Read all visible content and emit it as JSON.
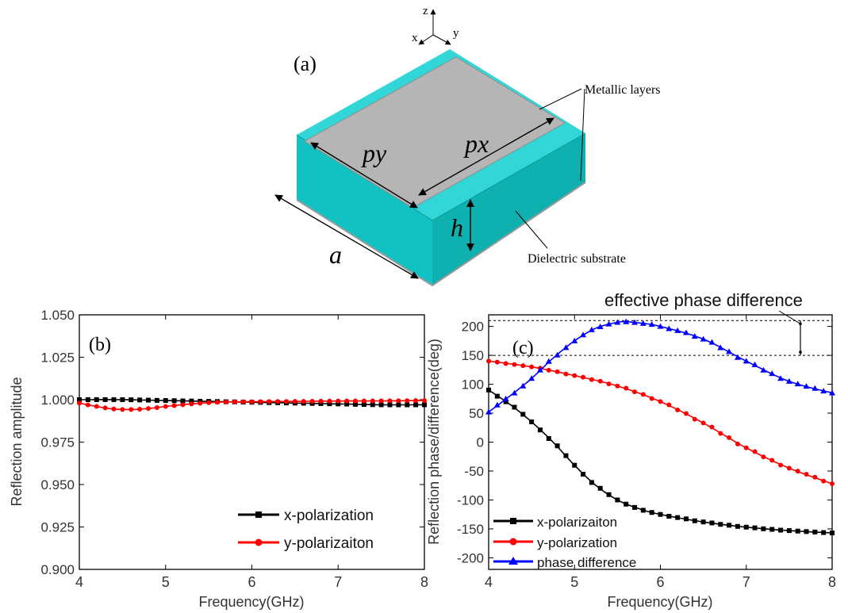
{
  "schematic": {
    "panel_label": "(a)",
    "axes": {
      "z": "z",
      "x": "x",
      "y": "y"
    },
    "dims": {
      "py": "py",
      "px": "px",
      "h": "h",
      "a": "a"
    },
    "callouts": {
      "metal": "Metallic layers",
      "substrate": "Dielectric substrate"
    },
    "colors": {
      "substrate_top": "#33d6d6",
      "substrate_front": "#12c2c2",
      "substrate_side": "#0fb0b0",
      "metal": "#b5b5b5"
    }
  },
  "chart_data": [
    {
      "type": "line",
      "panel_label": "(b)",
      "title": "",
      "xlabel": "Frequency(GHz)",
      "ylabel": "Reflection amplitude",
      "xlim": [
        4,
        8
      ],
      "ylim": [
        0.9,
        1.05
      ],
      "xticks": [
        "4",
        "5",
        "6",
        "7",
        "8"
      ],
      "yticks": [
        "0.900",
        "0.925",
        "0.950",
        "0.975",
        "1.000",
        "1.025",
        "1.050"
      ],
      "legend_position": "bottom-right",
      "series": [
        {
          "name": "x-polarization",
          "color": "#000000",
          "marker": "square",
          "x": [
            4.0,
            4.5,
            5.0,
            5.5,
            6.0,
            6.5,
            7.0,
            7.5,
            8.0
          ],
          "y": [
            1.0,
            1.0,
            0.9995,
            0.999,
            0.9985,
            0.998,
            0.9975,
            0.997,
            0.997
          ]
        },
        {
          "name": "y-polarizaiton",
          "color": "#ff0000",
          "marker": "circle",
          "x": [
            4.0,
            4.2,
            4.4,
            4.6,
            4.8,
            5.0,
            5.3,
            5.6,
            6.0,
            6.5,
            7.0,
            7.5,
            8.0
          ],
          "y": [
            0.998,
            0.996,
            0.9945,
            0.9942,
            0.9948,
            0.996,
            0.9975,
            0.9985,
            0.9988,
            0.999,
            0.9992,
            0.9993,
            0.9995
          ]
        }
      ]
    },
    {
      "type": "line",
      "panel_label": "(c)",
      "title": "",
      "xlabel": "Frequency(GHz)",
      "ylabel": "Reflection phase/difference(deg)",
      "xlim": [
        4,
        8
      ],
      "ylim": [
        -220,
        220
      ],
      "xticks": [
        "4",
        "5",
        "6",
        "7",
        "8"
      ],
      "yticks": [
        "-200",
        "-150",
        "-100",
        "-50",
        "0",
        "50",
        "100",
        "150",
        "200"
      ],
      "legend_position": "bottom-left",
      "annotation": {
        "text": "effective phase difference",
        "y_upper": 210,
        "y_lower": 150
      },
      "series": [
        {
          "name": "x-polarizaiton",
          "color": "#000000",
          "marker": "square",
          "x": [
            4.0,
            4.25,
            4.5,
            4.75,
            5.0,
            5.25,
            5.5,
            5.75,
            6.0,
            6.5,
            7.0,
            7.5,
            8.0
          ],
          "y": [
            90,
            65,
            35,
            0,
            -40,
            -75,
            -100,
            -115,
            -125,
            -138,
            -147,
            -153,
            -157
          ]
        },
        {
          "name": "y-polarization",
          "color": "#ff0000",
          "marker": "circle",
          "x": [
            4.0,
            4.5,
            5.0,
            5.5,
            6.0,
            6.5,
            7.0,
            7.5,
            8.0
          ],
          "y": [
            140,
            130,
            115,
            97,
            70,
            33,
            -10,
            -45,
            -72
          ]
        },
        {
          "name": "phase difference",
          "color": "#0000ff",
          "marker": "triangle",
          "x": [
            4.0,
            4.25,
            4.5,
            4.75,
            5.0,
            5.25,
            5.5,
            5.6,
            5.75,
            6.0,
            6.5,
            7.0,
            7.5,
            8.0
          ],
          "y": [
            52,
            80,
            110,
            145,
            175,
            197,
            207,
            208,
            206,
            200,
            178,
            140,
            105,
            85
          ]
        }
      ]
    }
  ]
}
